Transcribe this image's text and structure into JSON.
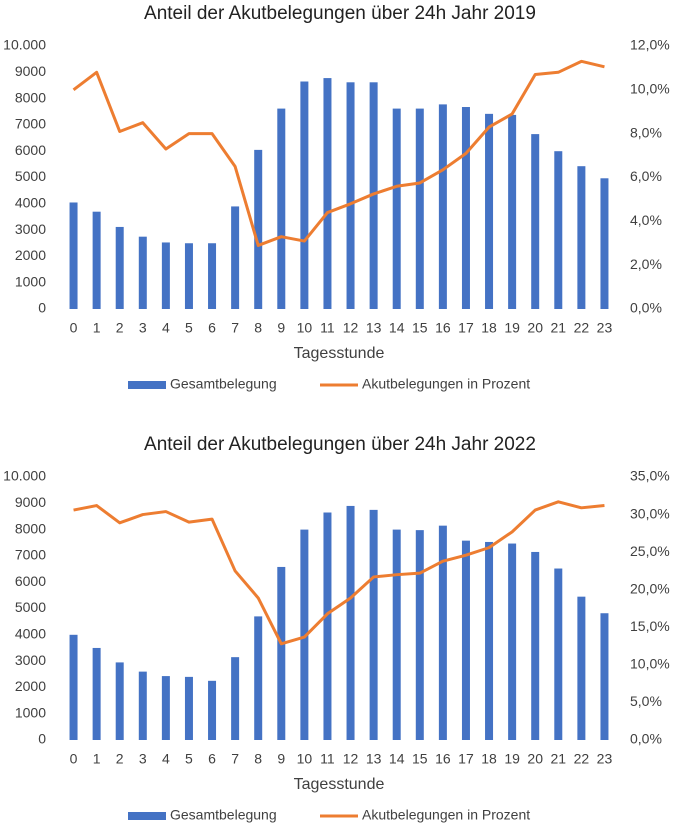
{
  "chart_data": [
    {
      "type": "combo",
      "title": "Anteil der Akutbelegungen über 24h Jahr 2019",
      "xlabel": "Tagesstunde",
      "categories": [
        0,
        1,
        2,
        3,
        4,
        5,
        6,
        7,
        8,
        9,
        10,
        11,
        12,
        13,
        14,
        15,
        16,
        17,
        18,
        19,
        20,
        21,
        22,
        23
      ],
      "ylim": [
        0,
        10000
      ],
      "yticks": [
        0,
        1000,
        2000,
        3000,
        4000,
        5000,
        6000,
        7000,
        8000,
        9000,
        {
          "value": 10000,
          "label": "10.000"
        }
      ],
      "y2lim": [
        0,
        12
      ],
      "y2ticks": [
        {
          "value": 0,
          "label": "0,0%"
        },
        {
          "value": 2,
          "label": "2,0%"
        },
        {
          "value": 4,
          "label": "4,0%"
        },
        {
          "value": 6,
          "label": "6,0%"
        },
        {
          "value": 8,
          "label": "8,0%"
        },
        {
          "value": 10,
          "label": "10,0%"
        },
        {
          "value": 12,
          "label": "12,0%"
        }
      ],
      "legend": "bottom",
      "series": [
        {
          "name": "Gesamtbelegung",
          "type": "bar",
          "color": "#4472c4",
          "values": [
            4050,
            3700,
            3120,
            2750,
            2530,
            2500,
            2500,
            3900,
            6050,
            7620,
            8650,
            8780,
            8620,
            8620,
            7620,
            7620,
            7780,
            7680,
            7420,
            7380,
            6650,
            6000,
            5430,
            4970
          ]
        },
        {
          "name": "Akutbelegungen in Prozent",
          "type": "line",
          "axis": "y2",
          "color": "#ed7d31",
          "values": [
            10.0,
            10.8,
            8.1,
            8.5,
            7.3,
            8.0,
            8.0,
            6.5,
            2.9,
            3.3,
            3.1,
            4.4,
            4.8,
            5.25,
            5.6,
            5.75,
            6.35,
            7.1,
            8.3,
            8.9,
            10.7,
            10.8,
            11.3,
            11.05
          ]
        }
      ]
    },
    {
      "type": "combo",
      "title": "Anteil der Akutbelegungen über 24h Jahr 2022",
      "xlabel": "Tagesstunde",
      "categories": [
        0,
        1,
        2,
        3,
        4,
        5,
        6,
        7,
        8,
        9,
        10,
        11,
        12,
        13,
        14,
        15,
        16,
        17,
        18,
        19,
        20,
        21,
        22,
        23
      ],
      "ylim": [
        0,
        10000
      ],
      "yticks": [
        0,
        1000,
        2000,
        3000,
        4000,
        5000,
        6000,
        7000,
        8000,
        9000,
        {
          "value": 10000,
          "label": "10.000"
        }
      ],
      "y2lim": [
        0,
        35
      ],
      "y2ticks": [
        {
          "value": 0,
          "label": "0,0%"
        },
        {
          "value": 5,
          "label": "5,0%"
        },
        {
          "value": 10,
          "label": "10,0%"
        },
        {
          "value": 15,
          "label": "15,0%"
        },
        {
          "value": 20,
          "label": "20,0%"
        },
        {
          "value": 25,
          "label": "25,0%"
        },
        {
          "value": 30,
          "label": "30,0%"
        },
        {
          "value": 35,
          "label": "35,0%"
        }
      ],
      "legend": "bottom",
      "series": [
        {
          "name": "Gesamtbelegung",
          "type": "bar",
          "color": "#4472c4",
          "values": [
            4000,
            3500,
            2950,
            2600,
            2430,
            2400,
            2250,
            3150,
            4700,
            6580,
            8000,
            8650,
            8900,
            8750,
            8000,
            7980,
            8150,
            7580,
            7530,
            7470,
            7150,
            6520,
            5450,
            4820
          ]
        },
        {
          "name": "Akutbelegungen in Prozent",
          "type": "line",
          "axis": "y2",
          "color": "#ed7d31",
          "values": [
            30.6,
            31.2,
            28.9,
            30.0,
            30.4,
            29.0,
            29.4,
            22.5,
            18.9,
            12.8,
            13.7,
            16.8,
            18.9,
            21.7,
            22.0,
            22.2,
            23.8,
            24.6,
            25.6,
            27.7,
            30.6,
            31.7,
            30.9,
            31.2
          ]
        }
      ]
    }
  ]
}
